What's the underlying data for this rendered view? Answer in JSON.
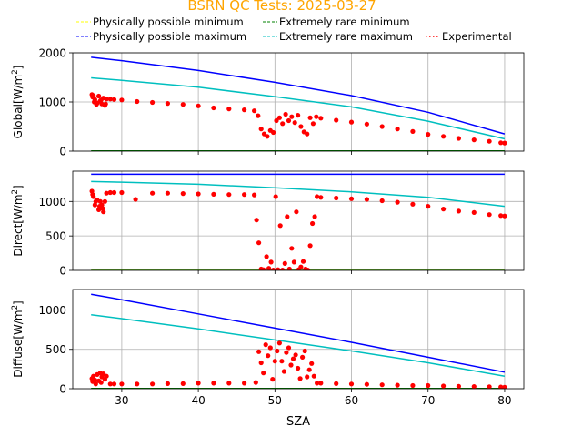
{
  "title": "BSRN QC Tests: 2025-03-27",
  "colors": {
    "title": "#ffa500",
    "phys_min": "#ffff00",
    "phys_max": "#0000ff",
    "rare_min": "#008000",
    "rare_max": "#00bfbf",
    "experimental": "#ff0000",
    "grid": "#b0b0b0"
  },
  "legend": {
    "placement": "top, above plots, 3 columns",
    "entries": [
      {
        "key": "phys_min",
        "label": "Physically possible minimum",
        "style": "dashed"
      },
      {
        "key": "phys_max",
        "label": "Physically possible maximum",
        "style": "dashed"
      },
      {
        "key": "rare_min",
        "label": "Extremely rare minimum",
        "style": "dashed"
      },
      {
        "key": "rare_max",
        "label": "Extremely rare maximum",
        "style": "dashed"
      },
      {
        "key": "experimental",
        "label": "Experimental",
        "style": "dotted"
      }
    ]
  },
  "chart_data": [
    {
      "type": "line+scatter",
      "ylabel": "Global[W/m$^2$]",
      "ylabel_main": "Global[W/m",
      "ylabel_sup": "2",
      "ylabel_tail": "]",
      "xlim": [
        23.6,
        82.5
      ],
      "ylim": [
        0,
        2000
      ],
      "yticks": [
        "0",
        "1000",
        "2000"
      ],
      "ytick_values": [
        0,
        1000,
        2000
      ],
      "grid": true,
      "lines": {
        "phys_min": {
          "x": [
            26,
            80
          ],
          "y": [
            -4,
            -4
          ]
        },
        "phys_max": {
          "x": [
            26,
            30,
            40,
            50,
            60,
            70,
            80
          ],
          "y": [
            1910,
            1840,
            1640,
            1400,
            1130,
            790,
            350
          ]
        },
        "rare_min": {
          "x": [
            26,
            80
          ],
          "y": [
            3,
            3
          ]
        },
        "rare_max": {
          "x": [
            26,
            30,
            40,
            50,
            60,
            70,
            80
          ],
          "y": [
            1490,
            1440,
            1300,
            1110,
            900,
            610,
            250
          ]
        }
      },
      "experimental": {
        "x": [
          26.1,
          26.3,
          26.5,
          26.8,
          27.0,
          27.2,
          27.4,
          27.6,
          27.8,
          28.0,
          26.2,
          26.4,
          26.7,
          27.3,
          27.9,
          28.5,
          29,
          30,
          32,
          34,
          36,
          38,
          40,
          42,
          44,
          46,
          47.3,
          47.8,
          48.2,
          48.6,
          49.0,
          49.4,
          49.8,
          50.2,
          50.6,
          51.0,
          51.4,
          51.8,
          52.2,
          52.6,
          53.0,
          53.4,
          53.8,
          54.2,
          54.6,
          55.0,
          55.4,
          56,
          58,
          60,
          62,
          64,
          66,
          68,
          70,
          72,
          74,
          76,
          78,
          79.5,
          80
        ],
        "y": [
          1150,
          1130,
          1050,
          980,
          1120,
          1020,
          960,
          1080,
          930,
          1060,
          1100,
          1000,
          950,
          1040,
          960,
          1060,
          1050,
          1040,
          1010,
          990,
          970,
          950,
          920,
          880,
          860,
          840,
          820,
          720,
          450,
          350,
          300,
          420,
          380,
          620,
          680,
          560,
          750,
          620,
          700,
          580,
          730,
          500,
          390,
          350,
          680,
          560,
          700,
          670,
          630,
          590,
          550,
          500,
          450,
          400,
          340,
          300,
          260,
          230,
          200,
          170,
          165
        ]
      }
    },
    {
      "type": "line+scatter",
      "ylabel": "Direct[W/m$^2$]",
      "ylabel_main": "Direct[W/m",
      "ylabel_sup": "2",
      "ylabel_tail": "]",
      "xlim": [
        23.6,
        82.5
      ],
      "ylim": [
        0,
        1440
      ],
      "yticks": [
        "0",
        "500",
        "1000"
      ],
      "ytick_values": [
        0,
        500,
        1000
      ],
      "grid": true,
      "lines": {
        "phys_min": {
          "x": [
            26,
            80
          ],
          "y": [
            0,
            0
          ]
        },
        "phys_max": {
          "x": [
            26,
            80
          ],
          "y": [
            1395,
            1395
          ]
        },
        "rare_min": {
          "x": [
            26,
            80
          ],
          "y": [
            0,
            0
          ]
        },
        "rare_max": {
          "x": [
            26,
            30,
            40,
            50,
            60,
            70,
            80
          ],
          "y": [
            1290,
            1280,
            1250,
            1200,
            1140,
            1060,
            930
          ]
        }
      },
      "experimental": {
        "x": [
          26.1,
          26.3,
          26.5,
          26.8,
          27.0,
          27.2,
          27.4,
          27.6,
          27.8,
          28.0,
          26.2,
          26.6,
          27.1,
          27.5,
          28.5,
          29,
          30,
          31.8,
          34,
          36,
          38,
          40,
          42,
          44,
          46,
          47.3,
          47.6,
          47.9,
          48.2,
          48.5,
          48.9,
          49.2,
          49.5,
          49.8,
          50.1,
          50.4,
          50.7,
          51.0,
          51.3,
          51.6,
          51.9,
          52.2,
          52.5,
          52.8,
          53.1,
          53.4,
          53.7,
          54.0,
          54.3,
          54.6,
          54.9,
          55.2,
          55.5,
          56,
          58,
          60,
          62,
          64,
          66,
          68,
          70,
          72,
          74,
          76,
          78,
          79.5,
          80
        ],
        "y": [
          1150,
          1070,
          950,
          1020,
          880,
          1000,
          950,
          850,
          1000,
          1120,
          1100,
          1000,
          930,
          900,
          1130,
          1130,
          1130,
          1030,
          1120,
          1120,
          1115,
          1110,
          1105,
          1100,
          1100,
          1095,
          730,
          400,
          20,
          10,
          200,
          30,
          120,
          5,
          1070,
          10,
          650,
          5,
          100,
          780,
          20,
          320,
          120,
          850,
          10,
          50,
          130,
          20,
          5,
          360,
          680,
          780,
          1070,
          1060,
          1050,
          1040,
          1030,
          1010,
          990,
          960,
          930,
          890,
          860,
          840,
          810,
          795,
          790
        ]
      }
    },
    {
      "type": "line+scatter",
      "ylabel": "Diffuse[W/m$^2$]",
      "ylabel_main": "Diffuse[W/m",
      "ylabel_sup": "2",
      "ylabel_tail": "]",
      "xlabel": "SZA",
      "xlim": [
        23.6,
        82.5
      ],
      "ylim": [
        0,
        1260
      ],
      "yticks": [
        "0",
        "500",
        "1000"
      ],
      "ytick_values": [
        0,
        500,
        1000
      ],
      "xticks": [
        "30",
        "40",
        "50",
        "60",
        "70",
        "80"
      ],
      "xtick_values": [
        30,
        40,
        50,
        60,
        70,
        80
      ],
      "grid": true,
      "lines": {
        "phys_min": {
          "x": [
            26,
            80
          ],
          "y": [
            -4,
            -4
          ]
        },
        "phys_max": {
          "x": [
            26,
            30,
            40,
            50,
            60,
            70,
            80
          ],
          "y": [
            1200,
            1130,
            950,
            770,
            590,
            400,
            210
          ]
        },
        "rare_min": {
          "x": [
            26,
            80
          ],
          "y": [
            3,
            3
          ]
        },
        "rare_max": {
          "x": [
            26,
            30,
            40,
            50,
            60,
            70,
            80
          ],
          "y": [
            940,
            890,
            760,
            620,
            480,
            330,
            160
          ]
        }
      },
      "experimental": {
        "x": [
          26.1,
          26.3,
          26.5,
          26.8,
          27.0,
          27.2,
          27.4,
          27.6,
          27.8,
          28.0,
          26.2,
          26.6,
          27.3,
          28.5,
          29,
          30,
          32,
          34,
          36,
          38,
          40,
          42,
          44,
          46,
          47.5,
          47.9,
          48.2,
          48.5,
          48.8,
          49.1,
          49.4,
          49.7,
          50.0,
          50.3,
          50.6,
          50.9,
          51.2,
          51.5,
          51.8,
          52.1,
          52.4,
          52.7,
          53.0,
          53.3,
          53.6,
          53.9,
          54.2,
          54.5,
          54.8,
          55.1,
          55.5,
          56,
          58,
          60,
          62,
          64,
          66,
          68,
          70,
          72,
          74,
          76,
          78,
          79.5,
          80
        ],
        "y": [
          130,
          160,
          110,
          180,
          100,
          200,
          150,
          190,
          120,
          160,
          90,
          60,
          80,
          60,
          60,
          60,
          60,
          60,
          65,
          65,
          70,
          70,
          70,
          70,
          80,
          470,
          330,
          200,
          560,
          420,
          520,
          120,
          350,
          480,
          580,
          350,
          220,
          460,
          520,
          300,
          380,
          430,
          260,
          130,
          400,
          480,
          150,
          240,
          320,
          160,
          70,
          70,
          65,
          60,
          55,
          50,
          45,
          40,
          40,
          35,
          30,
          28,
          25,
          22,
          20
        ]
      }
    }
  ]
}
